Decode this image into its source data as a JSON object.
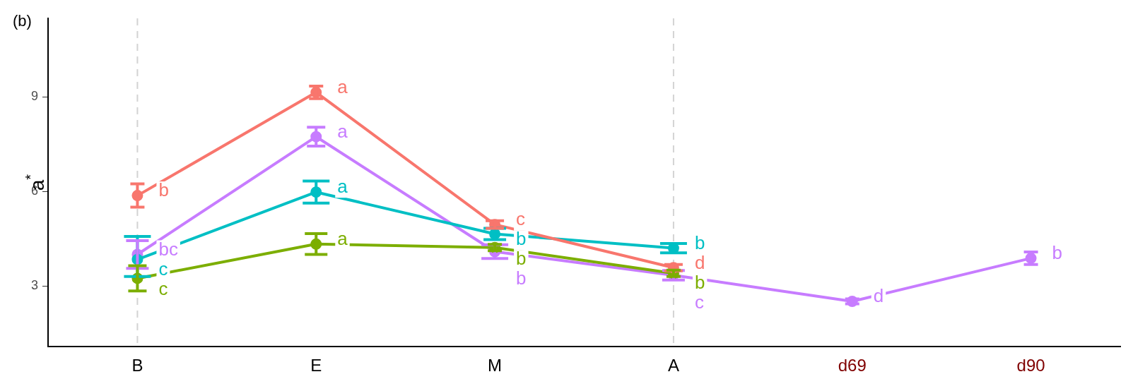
{
  "chart_data": {
    "type": "line",
    "title": "(b)",
    "ylabel": "a$^{*}$",
    "categories": [
      "B",
      "E",
      "M",
      "A",
      "d69",
      "d90"
    ],
    "ylim": [
      1.07,
      11.5
    ],
    "yticks": [
      3,
      6,
      9
    ],
    "grid": false,
    "legend": false,
    "marker": "circle",
    "line_style": "solid",
    "ref_lines": [
      {
        "axis": "x",
        "value": "B",
        "color": "#d3d3d3",
        "line_style": "dashed"
      },
      {
        "axis": "x",
        "value": "A",
        "color": "#d3d3d3",
        "line_style": "dashed"
      }
    ],
    "series": [
      {
        "color": "#f8766d",
        "values": [
          5.87,
          9.15,
          4.95,
          3.58,
          null,
          null
        ],
        "errors": [
          0.37,
          0.2,
          0.12,
          0.1,
          null,
          null
        ],
        "value_labels": [
          "b",
          "a",
          "c",
          "d",
          null,
          null
        ]
      },
      {
        "color": "#7cae00",
        "values": [
          3.24,
          4.33,
          4.22,
          3.4,
          null,
          null
        ],
        "errors": [
          0.4,
          0.33,
          0.1,
          0.1,
          null,
          null
        ],
        "value_labels": [
          "c",
          "a",
          "b",
          "b",
          null,
          null
        ]
      },
      {
        "color": "#00bfc4",
        "values": [
          3.84,
          5.98,
          4.65,
          4.2,
          null,
          null
        ],
        "errors": [
          [
            3.3,
            4.57
          ],
          0.35,
          0.18,
          0.15,
          null,
          null
        ],
        "value_labels": [
          "c",
          "a",
          "b",
          "b",
          null,
          null
        ]
      },
      {
        "color": "#c77cff",
        "values": [
          4.0,
          7.74,
          4.09,
          3.34,
          2.51,
          3.88
        ],
        "errors": [
          0.44,
          0.3,
          0.22,
          0.15,
          0.08,
          0.2
        ],
        "value_labels": [
          "bc",
          "a",
          "b",
          "c",
          "d",
          "b"
        ]
      }
    ]
  }
}
